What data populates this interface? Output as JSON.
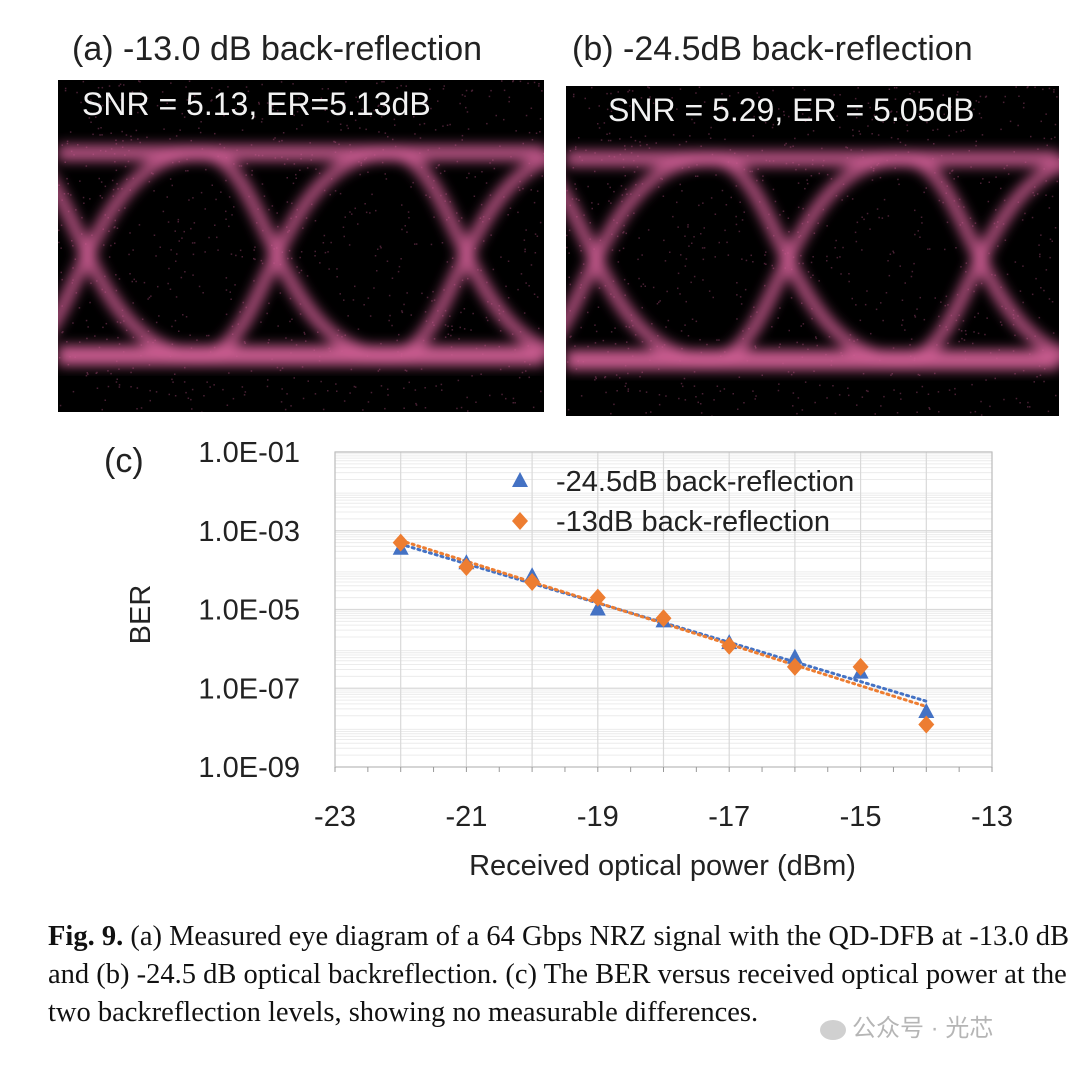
{
  "panels": [
    {
      "label": "(a) -13.0 dB back-reflection",
      "metrics": "SNR = 5.13, ER=5.13dB"
    },
    {
      "label": "(b) -24.5dB back-reflection",
      "metrics": "SNR = 5.29, ER = 5.05dB"
    }
  ],
  "colors": {
    "eye_trace": "#d25f96",
    "series_a": "#4472c4",
    "series_b": "#ed7d31",
    "grid": "#d9d9d9"
  },
  "chart_data": {
    "type": "scatter",
    "panel_label": "(c)",
    "xlabel": "Received optical power (dBm)",
    "ylabel": "BER",
    "xlim": [
      -23,
      -13
    ],
    "ylim": [
      1e-09,
      0.1
    ],
    "yscale": "log",
    "x_ticks": [
      "-23",
      "-21",
      "-19",
      "-17",
      "-15",
      "-13"
    ],
    "y_ticks": [
      "1.0E-01",
      "1.0E-03",
      "1.0E-05",
      "1.0E-07",
      "1.0E-09"
    ],
    "grid": true,
    "legend_position": "top-right",
    "series": [
      {
        "name": "-24.5dB back-reflection",
        "marker": "triangle",
        "color": "#4472c4",
        "x": [
          -22,
          -21,
          -20,
          -19,
          -18,
          -17,
          -16,
          -15,
          -14
        ],
        "y": [
          0.00035,
          0.00015,
          7e-05,
          1e-05,
          5e-06,
          1.4e-06,
          6e-07,
          2.5e-07,
          2.5e-08
        ]
      },
      {
        "name": "-13dB back-reflection",
        "marker": "diamond",
        "color": "#ed7d31",
        "x": [
          -22,
          -21,
          -20,
          -19,
          -18,
          -17,
          -16,
          -15,
          -14
        ],
        "y": [
          0.0005,
          0.00012,
          5e-05,
          2e-05,
          6e-06,
          1.2e-06,
          3.5e-07,
          3.5e-07,
          1.2e-08
        ]
      }
    ]
  },
  "caption": {
    "fig_label": "Fig. 9.",
    "text": " (a) Measured eye diagram of a 64 Gbps NRZ signal with the QD-DFB at -13.0 dB and (b) -24.5 dB optical backreflection. (c) The BER versus received optical power at the two backreflection levels, showing no measurable differences."
  },
  "watermark": "公众号 · 光芯"
}
